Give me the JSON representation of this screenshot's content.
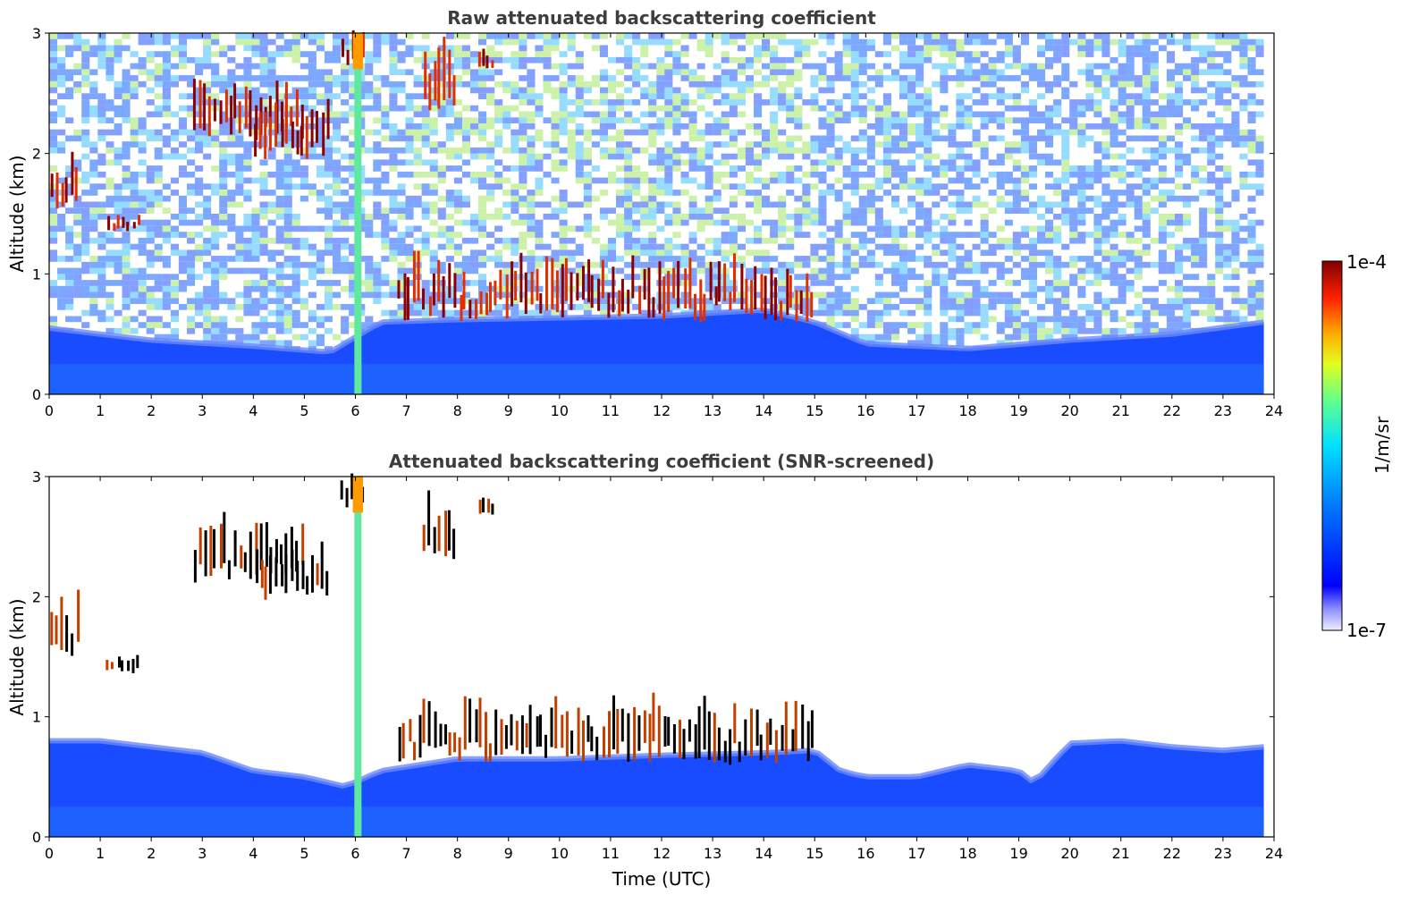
{
  "chart_data": [
    {
      "type": "heatmap",
      "title": "Raw attenuated backscattering coefficient",
      "xlabel": "",
      "ylabel": "Altitude (km)",
      "xlim": [
        0,
        24
      ],
      "ylim": [
        0,
        3
      ],
      "xticks": [
        0,
        1,
        2,
        3,
        4,
        5,
        6,
        7,
        8,
        9,
        10,
        11,
        12,
        13,
        14,
        15,
        16,
        17,
        18,
        19,
        20,
        21,
        22,
        23,
        24
      ],
      "yticks": [
        0,
        1,
        2,
        3
      ],
      "screened": false,
      "boundary_layer_top_km": [
        [
          0,
          0.55
        ],
        [
          2,
          0.45
        ],
        [
          4,
          0.4
        ],
        [
          5.5,
          0.35
        ],
        [
          6.5,
          0.6
        ],
        [
          8,
          0.62
        ],
        [
          12,
          0.65
        ],
        [
          14,
          0.7
        ],
        [
          15,
          0.6
        ],
        [
          16,
          0.42
        ],
        [
          18,
          0.38
        ],
        [
          20,
          0.45
        ],
        [
          22,
          0.5
        ],
        [
          23.8,
          0.6
        ]
      ],
      "cloud_layers": [
        {
          "t_start": 0.0,
          "t_end": 0.6,
          "alt_low_km": 1.5,
          "alt_high_km": 2.0
        },
        {
          "t_start": 1.1,
          "t_end": 1.8,
          "alt_low_km": 1.35,
          "alt_high_km": 1.5
        },
        {
          "t_start": 2.8,
          "t_end": 5.0,
          "alt_low_km": 2.1,
          "alt_high_km": 2.6
        },
        {
          "t_start": 4.0,
          "t_end": 5.5,
          "alt_low_km": 1.95,
          "alt_high_km": 2.4
        },
        {
          "t_start": 5.7,
          "t_end": 6.2,
          "alt_low_km": 2.7,
          "alt_high_km": 3.0
        },
        {
          "t_start": 7.3,
          "t_end": 8.0,
          "alt_low_km": 2.3,
          "alt_high_km": 2.9
        },
        {
          "t_start": 8.4,
          "t_end": 8.7,
          "alt_low_km": 2.65,
          "alt_high_km": 2.85
        },
        {
          "t_start": 6.8,
          "t_end": 15.0,
          "alt_low_km": 0.6,
          "alt_high_km": 1.1
        }
      ],
      "aerosol_plume": {
        "t_center": 6.05,
        "alt_low_km": 0.0,
        "alt_high_km": 3.0
      }
    },
    {
      "type": "heatmap",
      "title": "Attenuated backscattering coefficient (SNR-screened)",
      "xlabel": "Time (UTC)",
      "ylabel": "Altitude (km)",
      "xlim": [
        0,
        24
      ],
      "ylim": [
        0,
        3
      ],
      "xticks": [
        0,
        1,
        2,
        3,
        4,
        5,
        6,
        7,
        8,
        9,
        10,
        11,
        12,
        13,
        14,
        15,
        16,
        17,
        18,
        19,
        20,
        21,
        22,
        23,
        24
      ],
      "yticks": [
        0,
        1,
        2,
        3
      ],
      "screened": true,
      "boundary_layer_top_km": [
        [
          0,
          0.8
        ],
        [
          1,
          0.8
        ],
        [
          2,
          0.75
        ],
        [
          3,
          0.7
        ],
        [
          4,
          0.55
        ],
        [
          5,
          0.5
        ],
        [
          5.8,
          0.42
        ],
        [
          6.5,
          0.55
        ],
        [
          8,
          0.65
        ],
        [
          10,
          0.65
        ],
        [
          12,
          0.68
        ],
        [
          14,
          0.7
        ],
        [
          15,
          0.72
        ],
        [
          15.5,
          0.55
        ],
        [
          16,
          0.5
        ],
        [
          17,
          0.5
        ],
        [
          18,
          0.6
        ],
        [
          19,
          0.55
        ],
        [
          19.3,
          0.45
        ],
        [
          20,
          0.78
        ],
        [
          21,
          0.8
        ],
        [
          22,
          0.75
        ],
        [
          23,
          0.72
        ],
        [
          23.8,
          0.75
        ]
      ],
      "cloud_layers": [
        {
          "t_start": 0.0,
          "t_end": 0.6,
          "alt_low_km": 1.5,
          "alt_high_km": 2.0
        },
        {
          "t_start": 1.1,
          "t_end": 1.8,
          "alt_low_km": 1.35,
          "alt_high_km": 1.5
        },
        {
          "t_start": 2.8,
          "t_end": 5.0,
          "alt_low_km": 2.1,
          "alt_high_km": 2.6
        },
        {
          "t_start": 4.0,
          "t_end": 5.5,
          "alt_low_km": 1.95,
          "alt_high_km": 2.4
        },
        {
          "t_start": 5.7,
          "t_end": 6.2,
          "alt_low_km": 2.7,
          "alt_high_km": 3.0
        },
        {
          "t_start": 7.3,
          "t_end": 8.0,
          "alt_low_km": 2.3,
          "alt_high_km": 2.9
        },
        {
          "t_start": 8.4,
          "t_end": 8.7,
          "alt_low_km": 2.65,
          "alt_high_km": 2.85
        },
        {
          "t_start": 6.8,
          "t_end": 15.0,
          "alt_low_km": 0.6,
          "alt_high_km": 1.1
        }
      ],
      "aerosol_plume": {
        "t_center": 6.05,
        "alt_low_km": 0.0,
        "alt_high_km": 3.0
      }
    }
  ],
  "colorbar": {
    "label": "1/m/sr",
    "max_label": "1e-4",
    "min_label": "1e-7",
    "colormap": "jet",
    "scale": "log"
  },
  "colors": {
    "title": "#3d3d3d",
    "axis": "#000000"
  }
}
